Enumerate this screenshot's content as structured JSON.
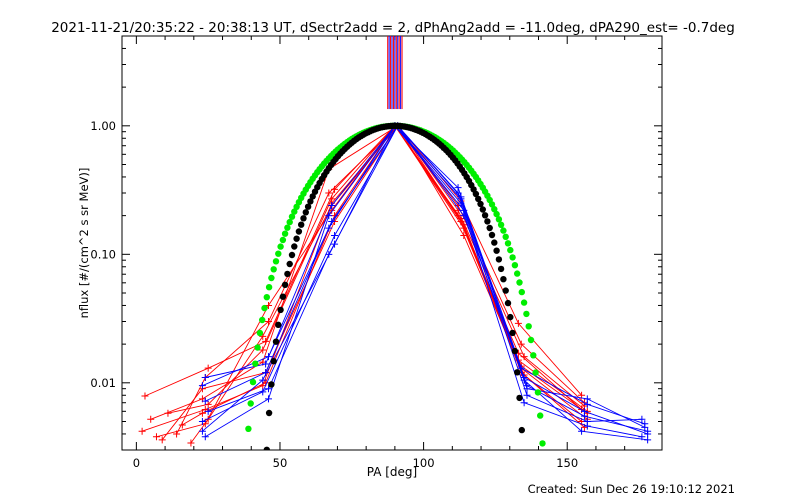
{
  "chart_data": {
    "type": "line",
    "title": "2021-11-21/20:35:22 - 20:38:13 UT, dSectr2add = 2, dPhAng2add = -11.0deg, dPA290_est= -0.7deg",
    "xlabel": "PA [deg]",
    "ylabel": "nflux [#/(cm^2 s sr MeV)]",
    "xlim": [
      -5,
      183
    ],
    "ylim": [
      0.003,
      5.0
    ],
    "yscale": "log",
    "xticks": [
      0,
      50,
      100,
      150
    ],
    "xtick_labels": [
      "0",
      "50",
      "100",
      "150"
    ],
    "yticks": [
      0.01,
      0.1,
      1.0
    ],
    "ytick_labels": [
      "0.01",
      "0.10",
      "1.00"
    ],
    "footer": "Created: Sun Dec 26 19:10:12 2021",
    "colors": {
      "red": "#ff0000",
      "blue": "#0000ff",
      "green": "#00ee00",
      "black": "#000000"
    },
    "vertical_lines": [
      {
        "x": 87.5,
        "color": "#ff0000"
      },
      {
        "x": 88.0,
        "color": "#0000ff"
      },
      {
        "x": 88.5,
        "color": "#ff0000"
      },
      {
        "x": 89.0,
        "color": "#0000ff"
      },
      {
        "x": 89.5,
        "color": "#ff0000"
      },
      {
        "x": 90.0,
        "color": "#0000ff"
      },
      {
        "x": 90.5,
        "color": "#ff0000"
      },
      {
        "x": 91.0,
        "color": "#0000ff"
      },
      {
        "x": 91.5,
        "color": "#ff0000"
      },
      {
        "x": 92.0,
        "color": "#0000ff"
      },
      {
        "x": 92.5,
        "color": "#ff0000"
      }
    ],
    "fits": [
      {
        "color": "#00ee00",
        "center": 90,
        "halfwidth": 55,
        "power": 2.5
      },
      {
        "color": "#000000",
        "center": 90,
        "halfwidth": 47,
        "power": 2.3
      }
    ],
    "series": [
      {
        "color": "#ff0000",
        "points": [
          [
            2,
            0.0042
          ],
          [
            24,
            0.0062
          ],
          [
            44,
            0.0095
          ],
          [
            68,
            0.25
          ],
          [
            91,
            1.0
          ],
          [
            112,
            0.24
          ],
          [
            134,
            0.02
          ],
          [
            156,
            0.007
          ]
        ]
      },
      {
        "color": "#ff0000",
        "points": [
          [
            3,
            0.0079
          ],
          [
            25,
            0.013
          ],
          [
            45,
            0.021
          ],
          [
            69,
            0.32
          ],
          [
            90,
            1.0
          ],
          [
            113,
            0.18
          ],
          [
            133,
            0.017
          ],
          [
            155,
            0.0062
          ]
        ]
      },
      {
        "color": "#ff0000",
        "points": [
          [
            5,
            0.0052
          ],
          [
            23,
            0.0075
          ],
          [
            44,
            0.0145
          ],
          [
            67,
            0.46
          ],
          [
            91,
            1.0
          ],
          [
            114,
            0.14
          ],
          [
            134,
            0.013
          ],
          [
            157,
            0.0052
          ]
        ]
      },
      {
        "color": "#ff0000",
        "points": [
          [
            7,
            0.0038
          ],
          [
            24,
            0.0048
          ],
          [
            46,
            0.04
          ],
          [
            68,
            0.22
          ],
          [
            90,
            1.0
          ],
          [
            112,
            0.2
          ],
          [
            135,
            0.0115
          ],
          [
            156,
            0.0045
          ]
        ]
      },
      {
        "color": "#ff0000",
        "points": [
          [
            9,
            0.0036
          ],
          [
            23,
            0.009
          ],
          [
            45,
            0.012
          ],
          [
            69,
            0.18
          ],
          [
            91,
            1.0
          ],
          [
            113,
            0.26
          ],
          [
            133,
            0.029
          ],
          [
            155,
            0.008
          ]
        ]
      },
      {
        "color": "#ff0000",
        "points": [
          [
            11,
            0.0058
          ],
          [
            25,
            0.0068
          ],
          [
            44,
            0.018
          ],
          [
            68,
            0.27
          ],
          [
            90,
            1.0
          ],
          [
            114,
            0.16
          ],
          [
            134,
            0.0135
          ],
          [
            157,
            0.0058
          ]
        ]
      },
      {
        "color": "#ff0000",
        "points": [
          [
            14,
            0.004
          ],
          [
            24,
            0.011
          ],
          [
            46,
            0.03
          ],
          [
            67,
            0.3
          ],
          [
            91,
            1.0
          ],
          [
            112,
            0.22
          ],
          [
            135,
            0.016
          ],
          [
            156,
            0.0066
          ]
        ]
      },
      {
        "color": "#ff0000",
        "points": [
          [
            16,
            0.0047
          ],
          [
            23,
            0.0058
          ],
          [
            45,
            0.01
          ],
          [
            69,
            0.2
          ],
          [
            90,
            1.0
          ],
          [
            113,
            0.19
          ],
          [
            134,
            0.012
          ],
          [
            155,
            0.005
          ]
        ]
      },
      {
        "color": "#ff0000",
        "points": [
          [
            19,
            0.0034
          ],
          [
            25,
            0.0052
          ],
          [
            44,
            0.023
          ],
          [
            68,
            0.24
          ],
          [
            91,
            1.0
          ],
          [
            114,
            0.17
          ],
          [
            133,
            0.015
          ],
          [
            157,
            0.006
          ]
        ]
      },
      {
        "color": "#0000ff",
        "points": [
          [
            23,
            0.0095
          ],
          [
            46,
            0.016
          ],
          [
            67,
            0.16
          ],
          [
            90,
            1.0
          ],
          [
            113,
            0.27
          ],
          [
            136,
            0.009
          ],
          [
            157,
            0.0075
          ],
          [
            177,
            0.0045
          ]
        ]
      },
      {
        "color": "#0000ff",
        "points": [
          [
            24,
            0.0072
          ],
          [
            45,
            0.012
          ],
          [
            68,
            0.18
          ],
          [
            91,
            1.0
          ],
          [
            112,
            0.3
          ],
          [
            135,
            0.011
          ],
          [
            156,
            0.006
          ],
          [
            178,
            0.004
          ]
        ]
      },
      {
        "color": "#0000ff",
        "points": [
          [
            23,
            0.0042
          ],
          [
            44,
            0.0105
          ],
          [
            69,
            0.12
          ],
          [
            90,
            1.0
          ],
          [
            114,
            0.22
          ],
          [
            136,
            0.008
          ],
          [
            157,
            0.005
          ],
          [
            176,
            0.0052
          ]
        ]
      },
      {
        "color": "#0000ff",
        "points": [
          [
            25,
            0.006
          ],
          [
            46,
            0.009
          ],
          [
            67,
            0.1
          ],
          [
            91,
            1.0
          ],
          [
            113,
            0.28
          ],
          [
            135,
            0.0105
          ],
          [
            155,
            0.0042
          ],
          [
            178,
            0.0036
          ]
        ]
      },
      {
        "color": "#0000ff",
        "points": [
          [
            24,
            0.011
          ],
          [
            45,
            0.014
          ],
          [
            68,
            0.24
          ],
          [
            90,
            1.0
          ],
          [
            112,
            0.33
          ],
          [
            134,
            0.013
          ],
          [
            157,
            0.0068
          ],
          [
            177,
            0.0048
          ]
        ]
      },
      {
        "color": "#0000ff",
        "points": [
          [
            23,
            0.005
          ],
          [
            44,
            0.0085
          ],
          [
            69,
            0.14
          ],
          [
            91,
            1.0
          ],
          [
            114,
            0.2
          ],
          [
            136,
            0.0095
          ],
          [
            156,
            0.0055
          ],
          [
            178,
            0.0042
          ]
        ]
      },
      {
        "color": "#0000ff",
        "points": [
          [
            24,
            0.0038
          ],
          [
            46,
            0.0075
          ],
          [
            67,
            0.2
          ],
          [
            90,
            1.0
          ],
          [
            113,
            0.25
          ],
          [
            135,
            0.007
          ],
          [
            157,
            0.0046
          ],
          [
            176,
            0.0038
          ]
        ]
      }
    ]
  }
}
